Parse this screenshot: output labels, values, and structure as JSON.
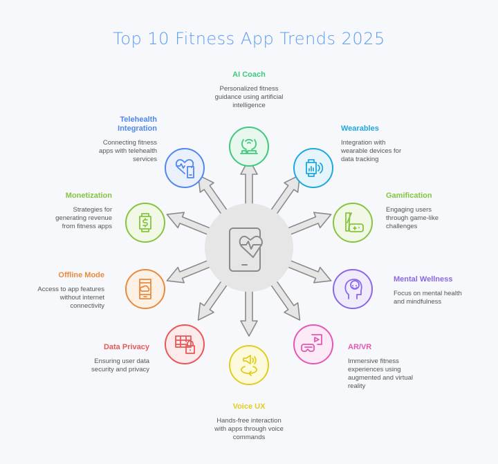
{
  "title": "Top 10 Fitness App Trends 2025",
  "center_icon": "phone-heart-icon",
  "arrow_color": "#e6e6e6",
  "items": [
    {
      "id": "ai-coach",
      "title": "AI Coach",
      "desc": "Personalized fitness guidance using artificial intelligence",
      "color": "#3cc97a",
      "fill": "#e9f8ef",
      "icon": "ai-hands-icon"
    },
    {
      "id": "wearables",
      "title": "Wearables",
      "desc": "Integration with wearable devices for data tracking",
      "color": "#1ea7de",
      "fill": "#e6f5fc",
      "icon": "smartwatch-icon"
    },
    {
      "id": "gamification",
      "title": "Gamification",
      "desc": "Engaging users through game-like challenges",
      "color": "#86c440",
      "fill": "#f1f8e6",
      "icon": "gamepad-icon"
    },
    {
      "id": "mental-wellness",
      "title": "Mental Wellness",
      "desc": "Focus on mental health and mindfulness",
      "color": "#8a66ea",
      "fill": "#f0ebfd",
      "icon": "head-smile-icon"
    },
    {
      "id": "ar-vr",
      "title": "AR/VR",
      "desc": "Immersive fitness experiences using augmented and virtual reality",
      "color": "#e457b3",
      "fill": "#fcebf6",
      "icon": "vr-headset-icon"
    },
    {
      "id": "voice-ux",
      "title": "Voice UX",
      "desc": "Hands-free interaction with apps through voice commands",
      "color": "#e3cd1c",
      "fill": "#fdf9dc",
      "icon": "speaker-rotate-icon"
    },
    {
      "id": "data-privacy",
      "title": "Data Privacy",
      "desc": "Ensuring user data security and privacy",
      "color": "#ea5656",
      "fill": "#fdeaea",
      "icon": "table-lock-icon"
    },
    {
      "id": "offline-mode",
      "title": "Offline Mode",
      "desc": "Access to app features without internet connectivity",
      "color": "#ea8a3c",
      "fill": "#fdf0e5",
      "icon": "phone-cloud-icon"
    },
    {
      "id": "monetization",
      "title": "Monetization",
      "desc": "Strategies for generating revenue from fitness apps",
      "color": "#86c440",
      "fill": "#f1f8e6",
      "icon": "watch-dollar-icon"
    },
    {
      "id": "telehealth",
      "title": "Telehealth Integration",
      "desc": "Connecting fitness apps with telehealth services",
      "color": "#5087ea",
      "fill": "#eaf1fd",
      "icon": "heart-phone-icon"
    }
  ]
}
